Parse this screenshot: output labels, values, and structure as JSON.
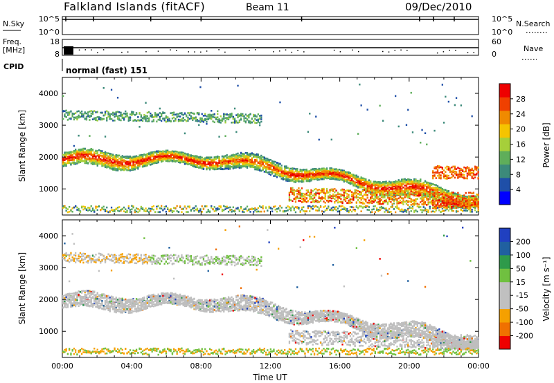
{
  "header": {
    "station": "Falkland Islands (fitACF)",
    "beam": "Beam 11",
    "date": "09/Dec/2010"
  },
  "strips": {
    "nsky": {
      "label": "N.Sky",
      "ticks": [
        "10^5",
        "10^0"
      ]
    },
    "nsearch": {
      "label": "N.Search",
      "ticks": [
        "10^5",
        "10^0"
      ]
    },
    "freq": {
      "label_line1": "Freq.",
      "label_line2": "[MHz]",
      "ticks": [
        "18",
        "8"
      ]
    },
    "nave": {
      "label": "Nave",
      "ticks": [
        "60",
        "0"
      ]
    },
    "cpid": {
      "label": "CPID",
      "value": "normal (fast) 151"
    }
  },
  "colors": {
    "power": [
      "#0000ff",
      "#1f4fa8",
      "#3c8a7a",
      "#5fae5a",
      "#a6cf3a",
      "#f5c400",
      "#f08a00",
      "#f04000",
      "#ee0000"
    ],
    "velocity": [
      "#ee0000",
      "#f07000",
      "#f5a000",
      "#c0c0c0",
      "#c0c0c0",
      "#70c040",
      "#2e9a4a",
      "#2060a0",
      "#2040c0"
    ],
    "ground_scatter": "#bebebe"
  },
  "chart_data": [
    {
      "type": "heatmap",
      "name": "power-panel",
      "xlabel": "",
      "ylabel": "Slant Range [km]",
      "x_range_hours": [
        0,
        24
      ],
      "ylim": [
        180,
        4500
      ],
      "yticks": [
        "4000",
        "3000",
        "2000",
        "1000"
      ],
      "colorbar": {
        "label": "Power [dB]",
        "range": [
          0,
          32
        ],
        "tick_labels": [
          "28",
          "24",
          "20",
          "16",
          "12",
          "8",
          "4"
        ]
      },
      "echo_bands": [
        {
          "t": [
            0,
            24
          ],
          "range_km": [
            2150,
            1450
          ],
          "power_db": 18
        },
        {
          "t": [
            0,
            11.5
          ],
          "range_km": [
            3400,
            3200
          ],
          "power_db": 10
        },
        {
          "t": [
            14,
            24
          ],
          "range_km": [
            1150,
            600
          ],
          "power_db": 24
        },
        {
          "t": [
            21.5,
            24
          ],
          "range_km": [
            1700,
            1300
          ],
          "power_db": 26
        }
      ]
    },
    {
      "type": "heatmap",
      "name": "velocity-panel",
      "xlabel": "Time UT",
      "ylabel": "Slant Range [km]",
      "x_range_hours": [
        0,
        24
      ],
      "ylim": [
        180,
        4500
      ],
      "yticks": [
        "4000",
        "3000",
        "2000",
        "1000"
      ],
      "xticks": [
        "00:00",
        "04:00",
        "08:00",
        "12:00",
        "16:00",
        "20:00",
        "00:00"
      ],
      "colorbar": {
        "label": "Velocity [m s⁻¹]",
        "tick_labels": [
          "200",
          "100",
          "50",
          "15",
          "-15",
          "-50",
          "-100",
          "-200"
        ]
      },
      "dominant_velocity_ms": 0
    }
  ]
}
